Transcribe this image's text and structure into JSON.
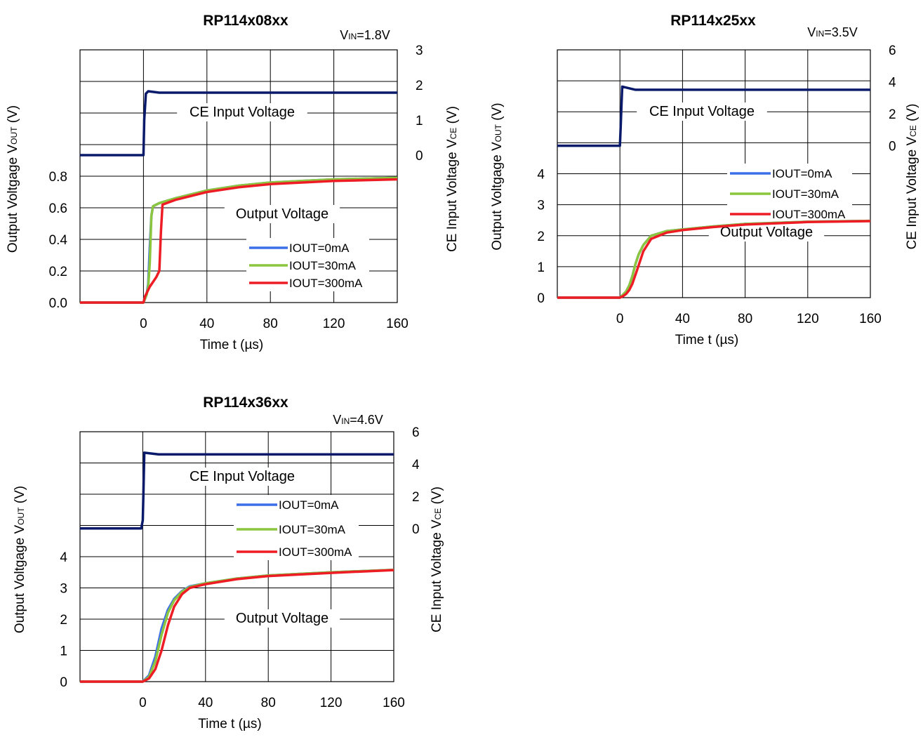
{
  "chart_data": [
    {
      "id": "c1",
      "type": "line",
      "title": "RP114x08xx",
      "vin": {
        "prefix": "V",
        "sub": "IN",
        "suffix": "=1.8V"
      },
      "xlabel": "Time t (µs)",
      "ylabel_left": {
        "prefix": "Output Voltgage V",
        "sub": "OUT",
        "suffix": " (V)"
      },
      "ylabel_right": {
        "prefix": "CE Input Voltage V",
        "sub": "CE",
        "suffix": " (V)"
      },
      "xlim": [
        -40,
        160
      ],
      "x_ticks": [
        0,
        40,
        80,
        120,
        160
      ],
      "left_ticks": [
        "0.0",
        "0.2",
        "0.4",
        "0.6",
        "0.8"
      ],
      "right_ticks": [
        "0",
        "1",
        "2",
        "3"
      ],
      "ce_label": "CE Input Voltage",
      "out_label": "Output Voltage",
      "legend": [
        "IOUT=0mA",
        "IOUT=30mA",
        "IOUT=300mA"
      ],
      "ce_series": {
        "name": "CE",
        "x": [
          -40,
          0,
          0.5,
          1.5,
          3,
          10,
          160
        ],
        "y": [
          0,
          0,
          1.0,
          1.75,
          1.82,
          1.78,
          1.78
        ]
      },
      "series": [
        {
          "name": "IOUT=0mA",
          "x": [
            -40,
            0,
            2,
            3,
            4,
            5,
            6,
            10,
            20,
            40,
            60,
            80,
            120,
            160
          ],
          "y": [
            0,
            0,
            0.05,
            0.12,
            0.35,
            0.55,
            0.61,
            0.63,
            0.66,
            0.71,
            0.74,
            0.76,
            0.78,
            0.79
          ]
        },
        {
          "name": "IOUT=30mA",
          "x": [
            -40,
            0,
            2,
            3,
            4,
            5,
            6,
            10,
            20,
            40,
            60,
            80,
            120,
            160
          ],
          "y": [
            0,
            0,
            0.05,
            0.1,
            0.25,
            0.55,
            0.61,
            0.63,
            0.66,
            0.71,
            0.74,
            0.76,
            0.78,
            0.79
          ]
        },
        {
          "name": "IOUT=300mA",
          "x": [
            -40,
            0,
            1,
            4,
            8,
            10,
            11,
            12,
            20,
            40,
            60,
            80,
            120,
            160
          ],
          "y": [
            0,
            0,
            0.04,
            0.1,
            0.16,
            0.2,
            0.45,
            0.62,
            0.65,
            0.7,
            0.73,
            0.75,
            0.77,
            0.78
          ]
        }
      ],
      "colors": {
        "ce": "#0a1a6b",
        "s0": "#3b6fe8",
        "s1": "#8cc63f",
        "s2": "#ee1c25",
        "grid": "#000000"
      }
    },
    {
      "id": "c2",
      "type": "line",
      "title": "RP114x25xx",
      "vin": {
        "prefix": "V",
        "sub": "IN",
        "suffix": "=3.5V"
      },
      "xlabel": "Time t (µs)",
      "ylabel_left": {
        "prefix": "Output Voltgage V",
        "sub": "OUT",
        "suffix": " (V)"
      },
      "ylabel_right": {
        "prefix": "CE Input Voltage V",
        "sub": "CE",
        "suffix": " (V)"
      },
      "xlim": [
        -40,
        160
      ],
      "x_ticks": [
        0,
        40,
        80,
        120,
        160
      ],
      "left_ticks": [
        "0",
        "1",
        "2",
        "3",
        "4"
      ],
      "right_ticks": [
        "0",
        "2",
        "4",
        "6"
      ],
      "ce_label": "CE Input Voltage",
      "out_label": "Output Voltage",
      "legend": [
        "IOUT=0mA",
        "IOUT=30mA",
        "IOUT=300mA"
      ],
      "ce_series": {
        "name": "CE",
        "x": [
          -40,
          0,
          0.5,
          1,
          1.5,
          10,
          160
        ],
        "y": [
          0,
          0,
          1.2,
          2.5,
          3.7,
          3.5,
          3.5
        ]
      },
      "series": [
        {
          "name": "IOUT=0mA",
          "x": [
            -40,
            0,
            2,
            4,
            6,
            8,
            10,
            12,
            15,
            20,
            30,
            40,
            60,
            80,
            120,
            160
          ],
          "y": [
            0,
            0,
            0.1,
            0.2,
            0.4,
            0.7,
            1.1,
            1.4,
            1.7,
            2.0,
            2.15,
            2.2,
            2.3,
            2.38,
            2.45,
            2.48
          ]
        },
        {
          "name": "IOUT=30mA",
          "x": [
            -40,
            0,
            2,
            4,
            6,
            8,
            10,
            12,
            15,
            20,
            30,
            40,
            60,
            80,
            120,
            160
          ],
          "y": [
            0,
            0,
            0.1,
            0.2,
            0.4,
            0.7,
            1.1,
            1.4,
            1.7,
            2.0,
            2.15,
            2.2,
            2.3,
            2.38,
            2.45,
            2.48
          ]
        },
        {
          "name": "IOUT=300mA",
          "x": [
            -40,
            0,
            2,
            4,
            6,
            8,
            10,
            12,
            15,
            20,
            30,
            40,
            60,
            80,
            120,
            160
          ],
          "y": [
            0,
            0,
            0.05,
            0.12,
            0.25,
            0.45,
            0.75,
            1.05,
            1.5,
            1.9,
            2.1,
            2.18,
            2.28,
            2.36,
            2.44,
            2.47
          ]
        }
      ],
      "colors": {
        "ce": "#0a1a6b",
        "s0": "#3b6fe8",
        "s1": "#8cc63f",
        "s2": "#ee1c25",
        "grid": "#000000"
      }
    },
    {
      "id": "c3",
      "type": "line",
      "title": "RP114x36xx",
      "vin": {
        "prefix": "V",
        "sub": "IN",
        "suffix": "=4.6V"
      },
      "xlabel": "Time t (µs)",
      "ylabel_left": {
        "prefix": "Output Voltgage V",
        "sub": "OUT",
        "suffix": " (V)"
      },
      "ylabel_right": {
        "prefix": "CE Input Voltage V",
        "sub": "CE",
        "suffix": " (V)"
      },
      "xlim": [
        -40,
        160
      ],
      "x_ticks": [
        0,
        40,
        80,
        120,
        160
      ],
      "left_ticks": [
        "0",
        "1",
        "2",
        "3",
        "4"
      ],
      "right_ticks": [
        "0",
        "2",
        "4",
        "6"
      ],
      "ce_label": "CE Input Voltage",
      "out_label": "Output Voltage",
      "legend": [
        "IOUT=0mA",
        "IOUT=30mA",
        "IOUT=300mA"
      ],
      "ce_series": {
        "name": "CE",
        "x": [
          -40,
          -1,
          0,
          0.5,
          1,
          10,
          160
        ],
        "y": [
          0,
          0,
          0.5,
          2.5,
          4.7,
          4.6,
          4.6
        ]
      },
      "series": [
        {
          "name": "IOUT=0mA",
          "x": [
            -40,
            0,
            4,
            8,
            12,
            16,
            20,
            25,
            30,
            40,
            60,
            80,
            120,
            160
          ],
          "y": [
            0,
            0,
            0.2,
            0.8,
            1.7,
            2.3,
            2.65,
            2.9,
            3.05,
            3.15,
            3.3,
            3.4,
            3.5,
            3.58
          ]
        },
        {
          "name": "IOUT=30mA",
          "x": [
            -40,
            0,
            4,
            8,
            12,
            16,
            20,
            25,
            30,
            40,
            60,
            80,
            120,
            160
          ],
          "y": [
            0,
            0,
            0.15,
            0.65,
            1.5,
            2.2,
            2.6,
            2.88,
            3.03,
            3.15,
            3.3,
            3.4,
            3.5,
            3.58
          ]
        },
        {
          "name": "IOUT=300mA",
          "x": [
            -40,
            0,
            4,
            8,
            12,
            16,
            20,
            25,
            30,
            40,
            60,
            80,
            120,
            160
          ],
          "y": [
            0,
            0,
            0.1,
            0.4,
            1.0,
            1.8,
            2.4,
            2.8,
            3.0,
            3.12,
            3.28,
            3.38,
            3.48,
            3.57
          ]
        }
      ],
      "colors": {
        "ce": "#0a1a6b",
        "s0": "#3b6fe8",
        "s1": "#8cc63f",
        "s2": "#ee1c25",
        "grid": "#000000"
      }
    }
  ]
}
